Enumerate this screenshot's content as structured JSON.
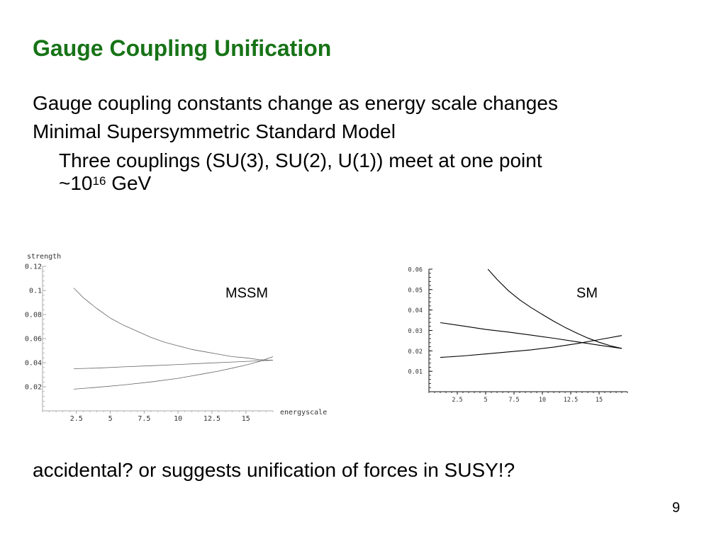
{
  "slide": {
    "title": "Gauge Coupling Unification",
    "bullets": [
      "Gauge coupling constants change as energy scale changes",
      "Minimal Supersymmetric Standard Model",
      "Three couplings (SU(3), SU(2), U(1)) meet at one point"
    ],
    "sub_line_prefix": "~10",
    "sub_line_exp": "16",
    "sub_line_suffix": " GeV",
    "footer": "accidental? or suggests unification of forces in SUSY!?",
    "page_number": "9"
  },
  "chart_data": [
    {
      "type": "line",
      "label": "MSSM",
      "ylabel": "strength",
      "xlabel": "energyscale",
      "xlim": [
        0,
        17
      ],
      "ylim": [
        0,
        0.12
      ],
      "xticks": [
        "2.5",
        "5",
        "7.5",
        "10",
        "12.5",
        "15"
      ],
      "yticks": [
        "0.02",
        "0.04",
        "0.06",
        "0.08",
        "0.1",
        "0.12"
      ],
      "grid": false,
      "series": [
        {
          "x": [
            2.3,
            3,
            4,
            5,
            6,
            7,
            8,
            9,
            10,
            11,
            12,
            13,
            14,
            15,
            16,
            17
          ],
          "values": [
            0.102,
            0.094,
            0.085,
            0.077,
            0.071,
            0.066,
            0.061,
            0.057,
            0.054,
            0.051,
            0.049,
            0.047,
            0.045,
            0.044,
            0.0425,
            0.042
          ]
        },
        {
          "x": [
            2.3,
            4,
            6,
            8,
            10,
            12,
            14,
            16,
            17
          ],
          "values": [
            0.035,
            0.0355,
            0.0365,
            0.0375,
            0.0385,
            0.0395,
            0.0405,
            0.0415,
            0.042
          ]
        },
        {
          "x": [
            2.3,
            4,
            6,
            8,
            10,
            12,
            13,
            14,
            15,
            16,
            17
          ],
          "values": [
            0.018,
            0.0195,
            0.0215,
            0.024,
            0.027,
            0.031,
            0.033,
            0.0355,
            0.038,
            0.041,
            0.045
          ]
        }
      ]
    },
    {
      "type": "line",
      "label": "SM",
      "xlim": [
        0,
        17.5
      ],
      "ylim": [
        0,
        0.06
      ],
      "xticks": [
        "2.5",
        "5",
        "7.5",
        "10",
        "12.5",
        "15"
      ],
      "yticks": [
        "0.01",
        "0.02",
        "0.03",
        "0.04",
        "0.05",
        "0.06"
      ],
      "grid": false,
      "series": [
        {
          "x": [
            5.2,
            6,
            7,
            8,
            9,
            10,
            11,
            12,
            13,
            14,
            15,
            16,
            17
          ],
          "values": [
            0.06,
            0.055,
            0.0495,
            0.045,
            0.0412,
            0.0378,
            0.0345,
            0.0315,
            0.0288,
            0.0263,
            0.0242,
            0.0225,
            0.0212
          ]
        },
        {
          "x": [
            1,
            3,
            5,
            7,
            9,
            11,
            13,
            15,
            17
          ],
          "values": [
            0.0338,
            0.0322,
            0.0305,
            0.0292,
            0.0277,
            0.0262,
            0.0245,
            0.0228,
            0.0212
          ]
        },
        {
          "x": [
            1,
            3,
            5,
            7,
            9,
            11,
            13,
            15,
            17
          ],
          "values": [
            0.0168,
            0.0175,
            0.0185,
            0.0195,
            0.0205,
            0.0218,
            0.0235,
            0.0255,
            0.0275
          ]
        }
      ]
    }
  ]
}
